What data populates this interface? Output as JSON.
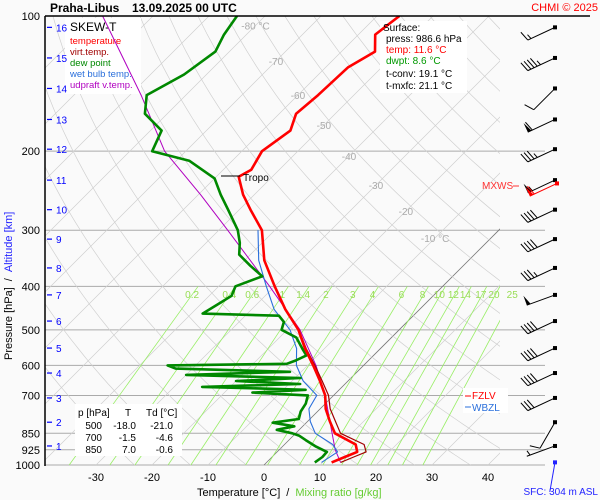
{
  "header": {
    "station": "Praha-Libus",
    "datetime": "13.09.2025 00 UTC",
    "copyright": "CHMI © 2025"
  },
  "legend": {
    "title": "SKEW-T",
    "items": [
      {
        "label": "temperature",
        "color": "#ff0000"
      },
      {
        "label": "virt.temp.",
        "color": "#a00000"
      },
      {
        "label": "dew point",
        "color": "#008800"
      },
      {
        "label": "wet bulb temp.",
        "color": "#2a6fdb"
      },
      {
        "label": "udpraft v.temp.",
        "color": "#b000c0"
      }
    ]
  },
  "surface": {
    "title": "Surface:",
    "press": "press: 986.6 hPa",
    "temp": "temp: 11.6 °C",
    "dwpt": "dwpt: 8.6 °C",
    "tconv": "t-conv: 19.1 °C",
    "tmxfc": "t-mxfc: 21.1 °C"
  },
  "table": {
    "headers": [
      "p [hPa]",
      "T",
      "Td [°C]"
    ],
    "rows": [
      [
        "500",
        "-18.0",
        "-21.0"
      ],
      [
        "700",
        "-1.5",
        "-4.6"
      ],
      [
        "850",
        "7.0",
        "-0.6"
      ]
    ]
  },
  "annotations": {
    "tropo": "Tropo",
    "mxws": "MXWS",
    "fzlv": "FZLV",
    "wbzl": "WBZL",
    "sfc": "SFC: 304 m ASL"
  },
  "chart_data": {
    "type": "skew-t",
    "xlabel_temperature": "Temperature [°C]",
    "xlabel_separator": "/",
    "xlabel_mixing": "Mixing ratio [g/kg]",
    "ylabel_pressure": "Pressure [hPa]",
    "ylabel_separator": "/",
    "ylabel_altitude": "Altitude [km]",
    "temperature_ticks": [
      -30,
      -20,
      -10,
      0,
      10,
      20,
      30,
      40
    ],
    "pressure_ticks": [
      100,
      200,
      300,
      400,
      500,
      600,
      700,
      850,
      925,
      1000
    ],
    "pressure_range": [
      100,
      1000
    ],
    "temperature_range_at_1000hPa": [
      -39,
      42
    ],
    "altitude_ticks_km": [
      {
        "km": 1,
        "p": 907
      },
      {
        "km": 2,
        "p": 803
      },
      {
        "km": 3,
        "p": 709
      },
      {
        "km": 4,
        "p": 624
      },
      {
        "km": 5,
        "p": 549
      },
      {
        "km": 6,
        "p": 478
      },
      {
        "km": 7,
        "p": 418
      },
      {
        "km": 8,
        "p": 364
      },
      {
        "km": 9,
        "p": 314
      },
      {
        "km": 10,
        "p": 270
      },
      {
        "km": 11,
        "p": 232
      },
      {
        "km": 12,
        "p": 198
      },
      {
        "km": 13,
        "p": 170
      },
      {
        "km": 14,
        "p": 145
      },
      {
        "km": 15,
        "p": 124
      },
      {
        "km": 16,
        "p": 106
      }
    ],
    "isotherm_labels": [
      {
        "label": "-80 °C",
        "t": -80,
        "p": 105
      },
      {
        "label": "-70",
        "t": -70,
        "p": 126
      },
      {
        "label": "-60",
        "t": -60,
        "p": 150
      },
      {
        "label": "-50",
        "t": -50,
        "p": 175
      },
      {
        "label": "-40",
        "t": -40,
        "p": 205
      },
      {
        "label": "-30",
        "t": -30,
        "p": 238
      },
      {
        "label": "-20",
        "t": -20,
        "p": 272
      },
      {
        "label": "-10 °C",
        "t": -10,
        "p": 312
      }
    ],
    "mixing_ratio_labels": [
      "0.2",
      "0.4",
      "0.6",
      "1",
      "1.4",
      "2",
      "3",
      "4",
      "6",
      "8",
      "10",
      "12",
      "14",
      "17",
      "20",
      "25"
    ],
    "mixing_ratio_values": [
      0.2,
      0.4,
      0.6,
      1,
      1.4,
      2,
      3,
      4,
      6,
      8,
      10,
      12,
      14,
      17,
      20,
      25
    ],
    "tropopause_hpa": 228,
    "freezing_level_hpa": 705,
    "colors": {
      "temperature": "#ff0000",
      "virtual": "#a00000",
      "dewpoint": "#008800",
      "wetbulb": "#2a6fdb",
      "parcel": "#b000c0",
      "isobar": "#aaaaaa",
      "isotherm": "#d0d0d0",
      "mixing": "#99ee66",
      "altitude": "#0000ff"
    },
    "series": [
      {
        "name": "temperature",
        "points": [
          [
            986.6,
            11.6
          ],
          [
            960,
            13
          ],
          [
            935,
            14.3
          ],
          [
            900,
            12.7
          ],
          [
            850,
            7.0
          ],
          [
            800,
            4.0
          ],
          [
            750,
            1.0
          ],
          [
            700,
            -1.5
          ],
          [
            650,
            -5
          ],
          [
            600,
            -9
          ],
          [
            550,
            -13.5
          ],
          [
            500,
            -18.0
          ],
          [
            450,
            -24
          ],
          [
            400,
            -30
          ],
          [
            350,
            -36.5
          ],
          [
            300,
            -42.3
          ],
          [
            270,
            -48
          ],
          [
            250,
            -52
          ],
          [
            228,
            -56
          ],
          [
            220,
            -55
          ],
          [
            200,
            -56.4
          ],
          [
            180,
            -55
          ],
          [
            165,
            -57
          ],
          [
            150,
            -56.4
          ],
          [
            130,
            -56
          ],
          [
            120,
            -54
          ],
          [
            110,
            -57
          ],
          [
            100,
            -56
          ]
        ]
      },
      {
        "name": "virt.temp.",
        "points": [
          [
            986.6,
            13.2
          ],
          [
            960,
            14.6
          ],
          [
            935,
            15.9
          ],
          [
            900,
            14.2
          ],
          [
            850,
            8.0
          ],
          [
            800,
            5.0
          ],
          [
            750,
            1.8
          ],
          [
            700,
            -0.9
          ],
          [
            650,
            -4.6
          ],
          [
            600,
            -8.7
          ],
          [
            550,
            -13.3
          ],
          [
            500,
            -17.9
          ],
          [
            450,
            -24
          ],
          [
            400,
            -30
          ],
          [
            350,
            -36.5
          ],
          [
            300,
            -42.3
          ]
        ]
      },
      {
        "name": "dew point",
        "points": [
          [
            986.6,
            8.6
          ],
          [
            960,
            9
          ],
          [
            935,
            8.9
          ],
          [
            910,
            6
          ],
          [
            880,
            3
          ],
          [
            860,
            1
          ],
          [
            850,
            -0.6
          ],
          [
            835,
            -4
          ],
          [
            820,
            -1.5
          ],
          [
            805,
            -6
          ],
          [
            790,
            -2
          ],
          [
            760,
            -3
          ],
          [
            730,
            -3.5
          ],
          [
            700,
            -4.6
          ],
          [
            690,
            -15
          ],
          [
            680,
            -6
          ],
          [
            670,
            -25
          ],
          [
            660,
            -8
          ],
          [
            650,
            -20
          ],
          [
            640,
            -9
          ],
          [
            630,
            -30
          ],
          [
            620,
            -12
          ],
          [
            610,
            -33
          ],
          [
            600,
            -35
          ],
          [
            595,
            -14
          ],
          [
            585,
            -13
          ],
          [
            570,
            -12
          ],
          [
            550,
            -14
          ],
          [
            520,
            -17
          ],
          [
            500,
            -21
          ],
          [
            480,
            -22
          ],
          [
            465,
            -24
          ],
          [
            460,
            -38
          ],
          [
            440,
            -37
          ],
          [
            420,
            -36
          ],
          [
            400,
            -37
          ],
          [
            380,
            -34
          ],
          [
            360,
            -38
          ],
          [
            340,
            -42
          ],
          [
            320,
            -44
          ],
          [
            300,
            -46.6
          ],
          [
            270,
            -52
          ],
          [
            250,
            -56
          ],
          [
            230,
            -60
          ],
          [
            210,
            -67.7
          ],
          [
            200,
            -76
          ],
          [
            180,
            -78
          ],
          [
            165,
            -84
          ],
          [
            150,
            -87
          ],
          [
            135,
            -84
          ],
          [
            120,
            -82.5
          ],
          [
            110,
            -84
          ],
          [
            100,
            -85
          ]
        ]
      },
      {
        "name": "wet bulb temp.",
        "points": [
          [
            986.6,
            9.8
          ],
          [
            935,
            10.8
          ],
          [
            900,
            8.6
          ],
          [
            850,
            3.5
          ],
          [
            800,
            0.5
          ],
          [
            750,
            -2
          ],
          [
            700,
            -3
          ],
          [
            650,
            -8
          ],
          [
            600,
            -12
          ],
          [
            550,
            -15
          ],
          [
            500,
            -19.5
          ],
          [
            450,
            -26
          ],
          [
            400,
            -31.5
          ],
          [
            350,
            -37.5
          ],
          [
            300,
            -43
          ]
        ]
      },
      {
        "name": "udpraft v.temp.",
        "points": [
          [
            986.6,
            13.2
          ],
          [
            925,
            10
          ],
          [
            850,
            6.5
          ],
          [
            800,
            4
          ],
          [
            700,
            -1.5
          ],
          [
            600,
            -8.5
          ],
          [
            500,
            -17.7
          ],
          [
            400,
            -30.9
          ],
          [
            300,
            -48.4
          ],
          [
            250,
            -59.6
          ],
          [
            200,
            -73.8
          ],
          [
            150,
            -88
          ],
          [
            100,
            -109
          ]
        ]
      }
    ],
    "winds": [
      {
        "p": 106,
        "dir": 245,
        "kt": 15
      },
      {
        "p": 124,
        "dir": 245,
        "kt": 45
      },
      {
        "p": 145,
        "dir": 225,
        "kt": 10
      },
      {
        "p": 170,
        "dir": 245,
        "kt": 60
      },
      {
        "p": 198,
        "dir": 245,
        "kt": 35
      },
      {
        "p": 232,
        "dir": 245,
        "kt": 55
      },
      {
        "p": 270,
        "dir": 245,
        "kt": 40
      },
      {
        "p": 314,
        "dir": 245,
        "kt": 40
      },
      {
        "p": 364,
        "dir": 245,
        "kt": 35
      },
      {
        "p": 418,
        "dir": 250,
        "kt": 50
      },
      {
        "p": 478,
        "dir": 245,
        "kt": 40
      },
      {
        "p": 549,
        "dir": 245,
        "kt": 40
      },
      {
        "p": 624,
        "dir": 245,
        "kt": 40
      },
      {
        "p": 709,
        "dir": 245,
        "kt": 30
      },
      {
        "p": 803,
        "dir": 210,
        "kt": 10
      },
      {
        "p": 907,
        "dir": 250,
        "kt": 5
      }
    ],
    "max_wind": {
      "p": 236,
      "dir": 245,
      "kt": 60
    },
    "surface_wind": {
      "p": 986.6,
      "dir": 190,
      "kt": 2
    }
  }
}
